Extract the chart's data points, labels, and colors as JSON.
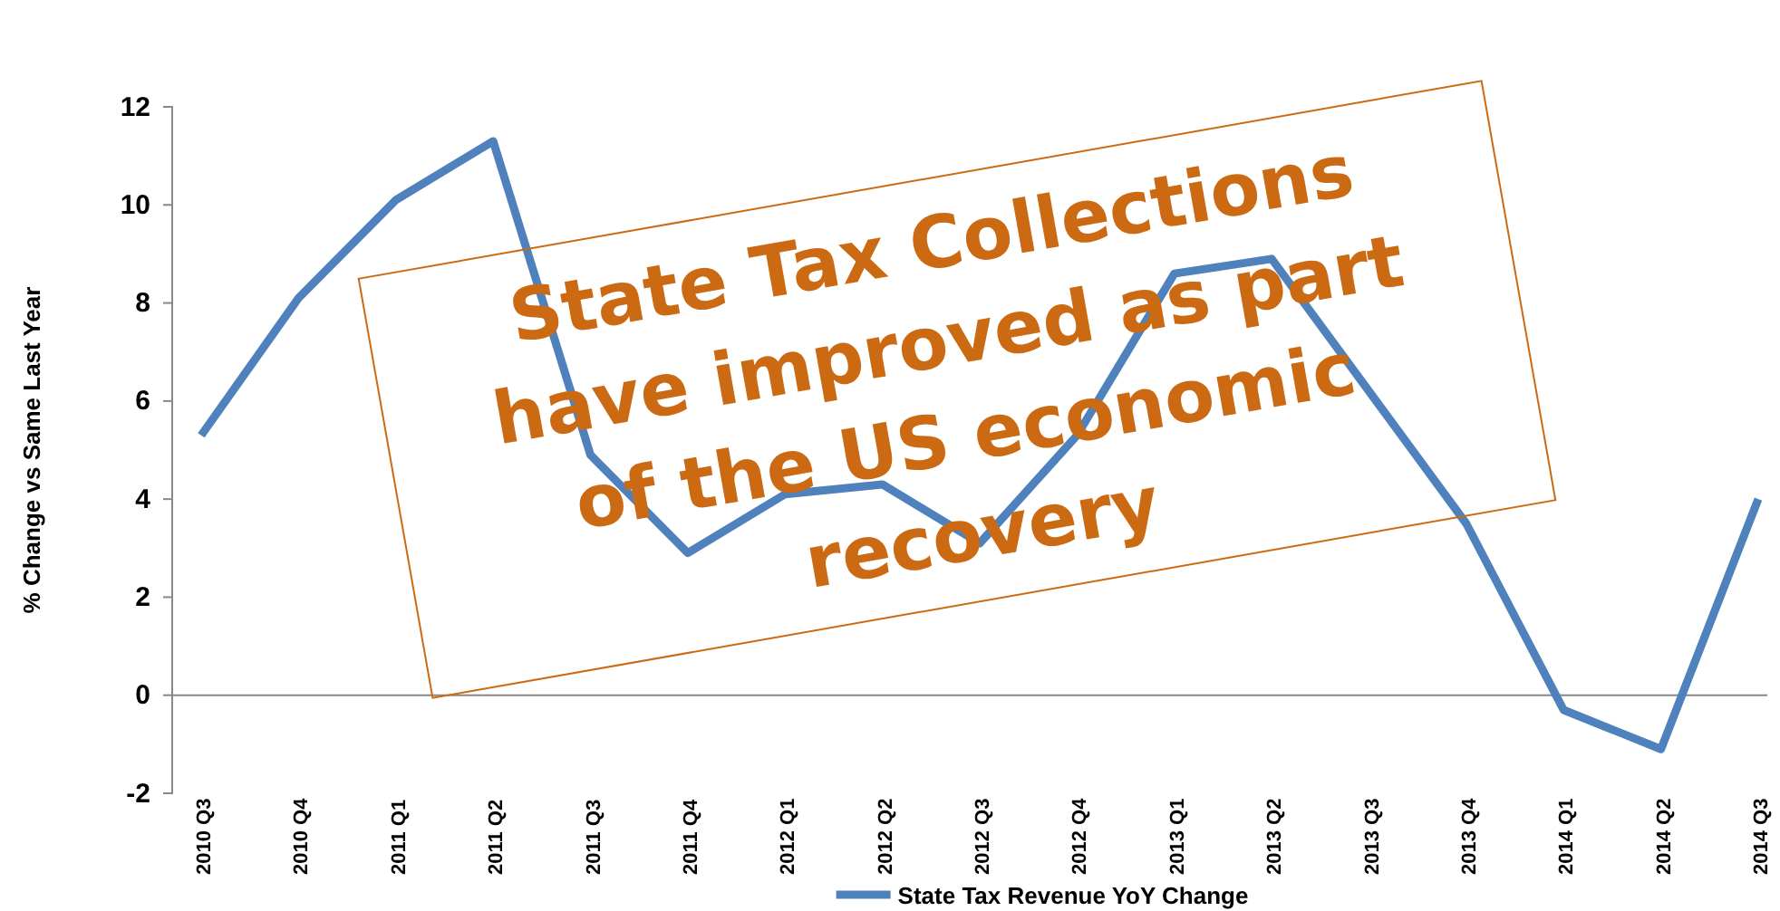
{
  "chart_data": {
    "type": "line",
    "ylabel": "% Change vs Same Last Year",
    "categories": [
      "2010 Q3",
      "2010 Q4",
      "2011 Q1",
      "2011 Q2",
      "2011 Q3",
      "2011 Q4",
      "2012 Q1",
      "2012 Q2",
      "2012 Q3",
      "2012 Q4",
      "2013 Q1",
      "2013 Q2",
      "2013 Q3",
      "2013 Q4",
      "2014 Q1",
      "2014 Q2",
      "2014 Q3"
    ],
    "series": [
      {
        "name": "State Tax Revenue YoY Change",
        "color": "#4f81bd",
        "values": [
          5.3,
          8.1,
          10.1,
          11.3,
          4.9,
          2.9,
          4.1,
          4.3,
          3.1,
          5.3,
          8.6,
          8.9,
          6.2,
          3.5,
          -0.3,
          -1.1,
          4.0
        ]
      }
    ],
    "ylim": [
      -2,
      12
    ],
    "yticks": [
      -2,
      0,
      2,
      4,
      6,
      8,
      10,
      12
    ],
    "legend": "bottom",
    "marker": "none",
    "line_style": "solid",
    "annotations": [
      "State Tax Collections have improved as part of the US economic recovery"
    ]
  }
}
